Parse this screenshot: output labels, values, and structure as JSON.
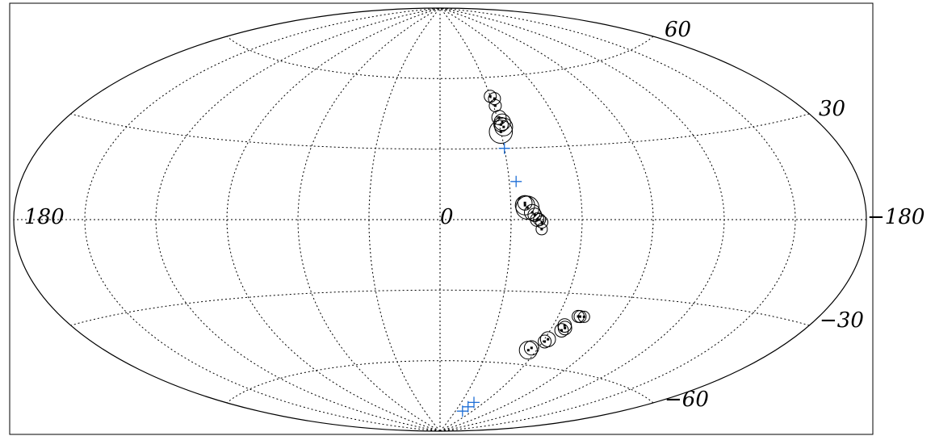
{
  "chart_data": {
    "type": "scatter",
    "projection": "aitoff",
    "grid": true,
    "meridians_deg": [
      -150,
      -120,
      -90,
      -60,
      -30,
      0,
      30,
      60,
      90,
      120,
      150
    ],
    "parallels_deg": [
      -60,
      -30,
      0,
      30,
      60
    ],
    "tick_labels": {
      "left_180": "180",
      "center_0": "0",
      "right_180": "−180",
      "lat_60": "60",
      "lat_30": "30",
      "lat_m30": "−30",
      "lat_m60": "−60"
    },
    "series": [
      {
        "marker": "circle",
        "color": "#000000",
        "points": [
          {
            "lon": -30,
            "lat": 52,
            "size": 1
          },
          {
            "lon": -32,
            "lat": 51,
            "size": 1
          },
          {
            "lon": -31,
            "lat": 48,
            "size": 1
          },
          {
            "lon": -31,
            "lat": 43,
            "size": 1.3
          },
          {
            "lon": -32,
            "lat": 41,
            "size": 1.6
          },
          {
            "lon": -31,
            "lat": 40,
            "size": 1.3
          },
          {
            "lon": -32,
            "lat": 39,
            "size": 1.8
          },
          {
            "lon": -30,
            "lat": 37,
            "size": 2.5
          },
          {
            "lon": -36,
            "lat": 7,
            "size": 1.3
          },
          {
            "lon": -36,
            "lat": 6,
            "size": 2.0
          },
          {
            "lon": -37,
            "lat": 5,
            "size": 2.5
          },
          {
            "lon": -39,
            "lat": 3,
            "size": 1.5
          },
          {
            "lon": -40,
            "lat": 2,
            "size": 1.2
          },
          {
            "lon": -41,
            "lat": 0,
            "size": 1.2
          },
          {
            "lon": -42,
            "lat": 0,
            "size": 1
          },
          {
            "lon": -43,
            "lat": -1,
            "size": 1
          },
          {
            "lon": -43,
            "lat": -4,
            "size": 0.9
          },
          {
            "lon": -70,
            "lat": -39,
            "size": 1
          },
          {
            "lon": -71,
            "lat": -39,
            "size": 1
          },
          {
            "lon": -73,
            "lat": -39,
            "size": 0.9
          },
          {
            "lon": -66,
            "lat": -43,
            "size": 1.2
          },
          {
            "lon": -67,
            "lat": -44,
            "size": 1.2
          },
          {
            "lon": -66,
            "lat": -45,
            "size": 1.2
          },
          {
            "lon": -62,
            "lat": -49,
            "size": 1.4
          },
          {
            "lon": -61,
            "lat": -50,
            "size": 1.1
          },
          {
            "lon": -56,
            "lat": -53,
            "size": 1.3
          },
          {
            "lon": -55,
            "lat": -54,
            "size": 1.8
          }
        ]
      },
      {
        "marker": "plus",
        "color": "#1f6fd6",
        "points": [
          {
            "lon": -30,
            "lat": 30
          },
          {
            "lon": -33,
            "lat": 16
          },
          {
            "lon": -47,
            "lat": -77
          },
          {
            "lon": -45,
            "lat": -79
          },
          {
            "lon": -43,
            "lat": -81
          }
        ]
      }
    ]
  }
}
